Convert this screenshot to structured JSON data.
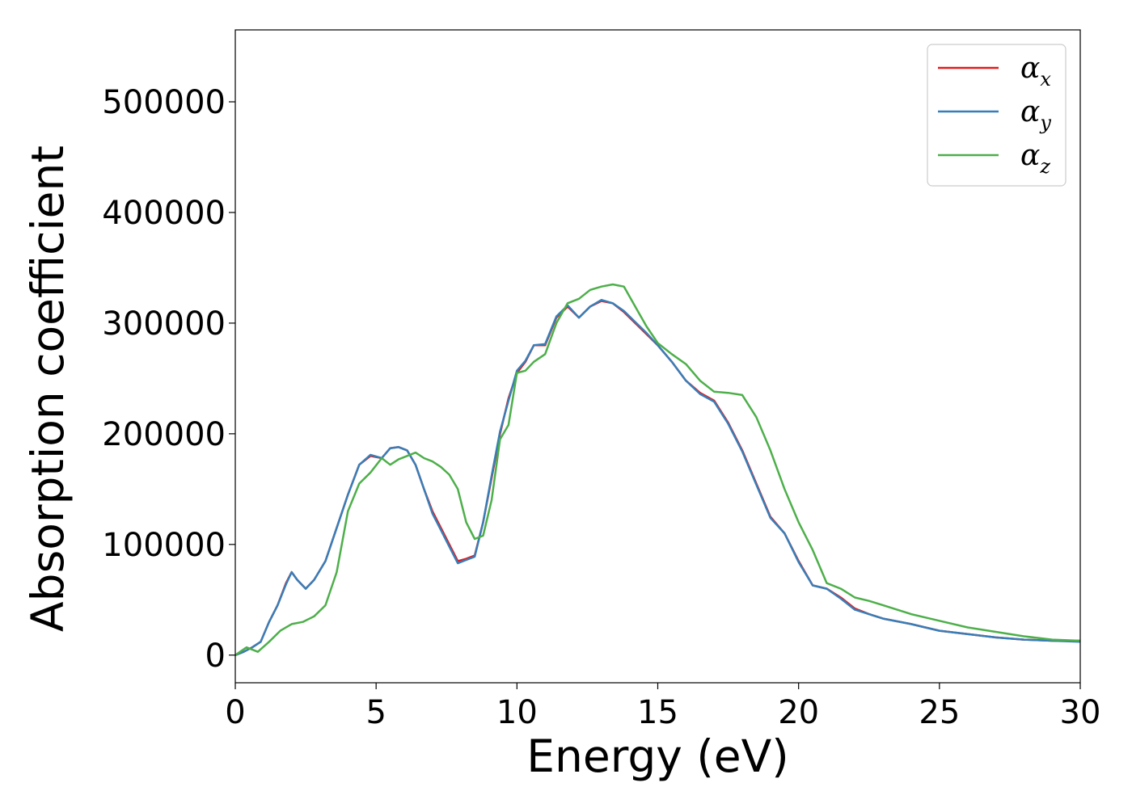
{
  "chart_data": {
    "type": "line",
    "title": "",
    "xlabel": "Energy (eV)",
    "ylabel": "Absorption coefficient",
    "xlim": [
      0,
      30
    ],
    "ylim": [
      -25000,
      565000
    ],
    "xticks": [
      0,
      5,
      10,
      15,
      20,
      25,
      30
    ],
    "xtick_labels": [
      "0",
      "5",
      "10",
      "15",
      "20",
      "25",
      "30"
    ],
    "yticks": [
      0,
      100000,
      200000,
      300000,
      400000,
      500000
    ],
    "ytick_labels": [
      "0",
      "100000",
      "200000",
      "300000",
      "400000",
      "500000"
    ],
    "grid": false,
    "legend_position": "top-right",
    "series": [
      {
        "name": "α",
        "subscript": "x",
        "color": "#e41a1c",
        "x": [
          0,
          0.3,
          0.6,
          0.9,
          1.2,
          1.5,
          1.8,
          2.0,
          2.2,
          2.5,
          2.8,
          3.2,
          3.6,
          4.0,
          4.4,
          4.8,
          5.2,
          5.5,
          5.8,
          6.1,
          6.4,
          6.7,
          7.0,
          7.3,
          7.6,
          7.9,
          8.2,
          8.5,
          8.8,
          9.1,
          9.4,
          9.7,
          10.0,
          10.3,
          10.6,
          11.0,
          11.4,
          11.8,
          12.2,
          12.6,
          13.0,
          13.4,
          13.8,
          14.2,
          14.6,
          15.0,
          15.5,
          16.0,
          16.5,
          17.0,
          17.5,
          18.0,
          18.5,
          19.0,
          19.5,
          20.0,
          20.5,
          21.0,
          21.5,
          22.0,
          22.5,
          23.0,
          24.0,
          25.0,
          26.0,
          27.0,
          28.0,
          29.0,
          30.0
        ],
        "y": [
          0,
          3000,
          7000,
          12000,
          30000,
          45000,
          65000,
          75000,
          68000,
          60000,
          68000,
          85000,
          115000,
          145000,
          172000,
          180000,
          178000,
          187000,
          188000,
          185000,
          172000,
          150000,
          130000,
          115000,
          100000,
          85000,
          87000,
          90000,
          120000,
          160000,
          200000,
          232000,
          255000,
          265000,
          280000,
          280000,
          305000,
          315000,
          305000,
          315000,
          320000,
          318000,
          310000,
          300000,
          290000,
          280000,
          265000,
          248000,
          237000,
          230000,
          210000,
          185000,
          155000,
          125000,
          110000,
          85000,
          63000,
          60000,
          52000,
          42000,
          37000,
          33000,
          28000,
          22000,
          19000,
          16000,
          14000,
          13000,
          13000
        ]
      },
      {
        "name": "α",
        "subscript": "y",
        "color": "#377eb8",
        "x": [
          0,
          0.3,
          0.6,
          0.9,
          1.2,
          1.5,
          1.8,
          2.0,
          2.2,
          2.5,
          2.8,
          3.2,
          3.6,
          4.0,
          4.4,
          4.8,
          5.2,
          5.5,
          5.8,
          6.1,
          6.4,
          6.7,
          7.0,
          7.3,
          7.6,
          7.9,
          8.2,
          8.5,
          8.8,
          9.1,
          9.4,
          9.7,
          10.0,
          10.3,
          10.6,
          11.0,
          11.4,
          11.8,
          12.2,
          12.6,
          13.0,
          13.4,
          13.8,
          14.2,
          14.6,
          15.0,
          15.5,
          16.0,
          16.5,
          17.0,
          17.5,
          18.0,
          18.5,
          19.0,
          19.5,
          20.0,
          20.5,
          21.0,
          21.5,
          22.0,
          22.5,
          23.0,
          24.0,
          25.0,
          26.0,
          27.0,
          28.0,
          29.0,
          30.0
        ],
        "y": [
          0,
          3000,
          7000,
          12000,
          30000,
          45000,
          64000,
          75000,
          68000,
          60000,
          68000,
          85000,
          115000,
          145000,
          172000,
          181000,
          178000,
          187000,
          188000,
          185000,
          172000,
          150000,
          128000,
          113000,
          98000,
          83000,
          86000,
          89000,
          120000,
          162000,
          202000,
          230000,
          257000,
          266000,
          280000,
          281000,
          306000,
          316000,
          305000,
          315000,
          321000,
          318000,
          311000,
          301000,
          291000,
          280000,
          265000,
          248000,
          236000,
          229000,
          209000,
          184000,
          154000,
          124000,
          110000,
          84000,
          63000,
          60000,
          51000,
          41000,
          37000,
          33000,
          28000,
          22000,
          19000,
          16000,
          14000,
          13000,
          12000
        ]
      },
      {
        "name": "α",
        "subscript": "z",
        "color": "#4daf4a",
        "x": [
          0,
          0.4,
          0.8,
          1.2,
          1.6,
          2.0,
          2.4,
          2.8,
          3.2,
          3.6,
          4.0,
          4.4,
          4.8,
          5.2,
          5.5,
          5.8,
          6.1,
          6.4,
          6.7,
          7.0,
          7.3,
          7.6,
          7.9,
          8.2,
          8.5,
          8.8,
          9.1,
          9.4,
          9.7,
          10.0,
          10.3,
          10.6,
          11.0,
          11.4,
          11.8,
          12.2,
          12.6,
          13.0,
          13.4,
          13.8,
          14.2,
          14.6,
          15.0,
          15.5,
          16.0,
          16.5,
          17.0,
          17.5,
          18.0,
          18.5,
          19.0,
          19.5,
          20.0,
          20.5,
          21.0,
          21.5,
          22.0,
          22.5,
          23.0,
          24.0,
          25.0,
          26.0,
          27.0,
          28.0,
          29.0,
          30.0
        ],
        "y": [
          0,
          7000,
          3000,
          12000,
          22000,
          28000,
          30000,
          35000,
          45000,
          75000,
          130000,
          155000,
          165000,
          178000,
          172000,
          177000,
          180000,
          183000,
          178000,
          175000,
          170000,
          163000,
          150000,
          120000,
          105000,
          108000,
          140000,
          195000,
          208000,
          255000,
          257000,
          265000,
          272000,
          300000,
          318000,
          322000,
          330000,
          333000,
          335000,
          333000,
          315000,
          297000,
          282000,
          272000,
          263000,
          248000,
          238000,
          237000,
          235000,
          215000,
          185000,
          150000,
          120000,
          95000,
          65000,
          60000,
          52000,
          49000,
          45000,
          37000,
          31000,
          25000,
          21000,
          17000,
          14000,
          13000
        ]
      }
    ]
  }
}
